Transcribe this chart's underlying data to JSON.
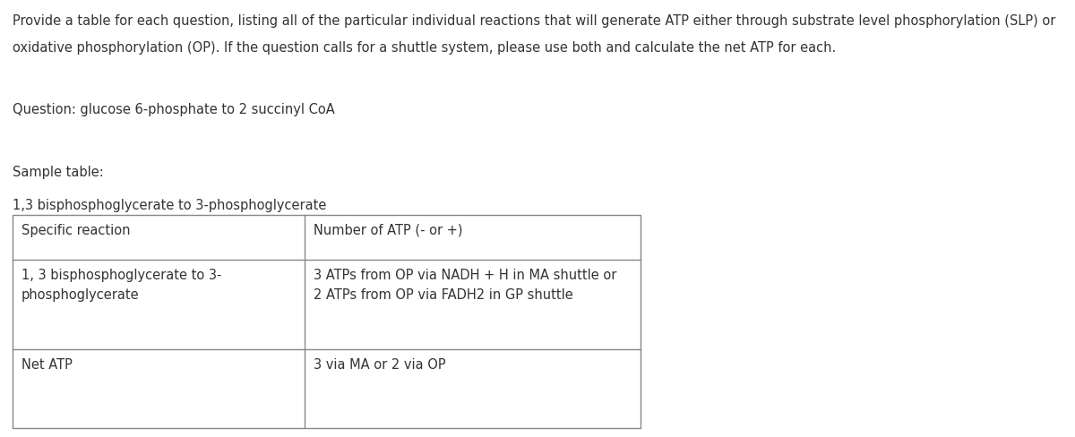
{
  "bg_color": "#ffffff",
  "text_color": "#333333",
  "para1": "Provide a table for each question, listing all of the particular individual reactions that will generate ATP either through substrate level phosphorylation (SLP) or",
  "para2": "oxidative phosphorylation (OP). If the question calls for a shuttle system, please use both and calculate the net ATP for each.",
  "question_label": "Question: glucose 6-phosphate to 2 succinyl CoA",
  "sample_label": "Sample table:",
  "table_title": "1,3 bisphosphoglycerate to 3-phosphoglycerate",
  "col1_header": "Specific reaction",
  "col2_header": "Number of ATP (- or +)",
  "row1_col1_line1": "1, 3 bisphosphoglycerate to 3-",
  "row1_col1_line2": "phosphoglycerate",
  "row1_col2_line1": "3 ATPs from OP via NADH + H in MA shuttle or",
  "row1_col2_line2": "2 ATPs from OP via FADH2 in GP shuttle",
  "row2_col1": "Net ATP",
  "row2_col2": "3 via MA or 2 via OP",
  "font_size": 10.5,
  "line_color": "#888888"
}
